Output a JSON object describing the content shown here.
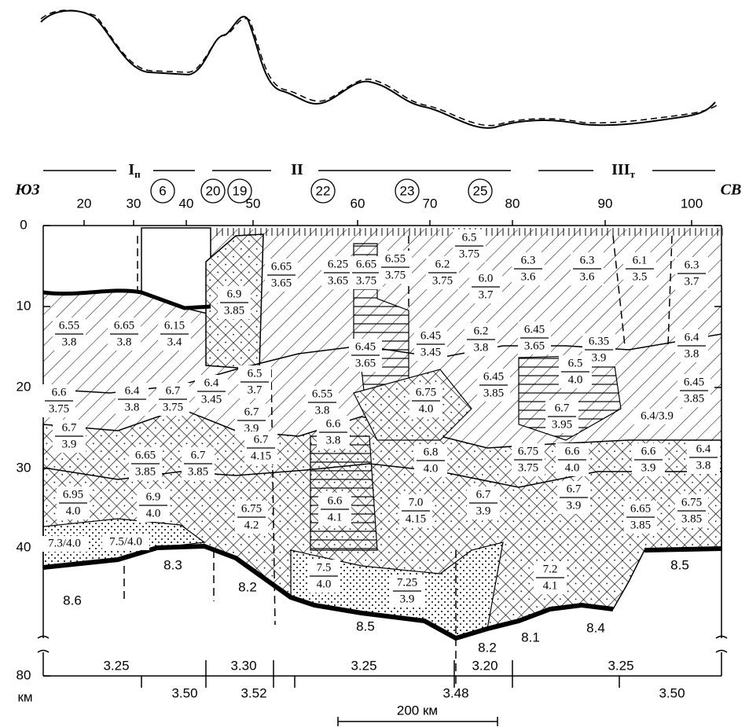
{
  "directions": {
    "left": "ЮЗ",
    "right": "СВ"
  },
  "zones": [
    {
      "label": "I",
      "subscript": "п"
    },
    {
      "label": "II"
    },
    {
      "label": "III",
      "subscript": "т"
    }
  ],
  "stations": [
    "6",
    "20",
    "19",
    "22",
    "23",
    "25"
  ],
  "distance_ticks": [
    20,
    30,
    40,
    50,
    60,
    70,
    80,
    90,
    100
  ],
  "depth_ticks": [
    0,
    10,
    20,
    30,
    40,
    80
  ],
  "depth_unit": "км",
  "cells": [
    {
      "top": "6.55",
      "bottom": "3.8"
    },
    {
      "top": "6.65",
      "bottom": "3.8"
    },
    {
      "top": "6.15",
      "bottom": "3.4"
    },
    {
      "top": "6.9",
      "bottom": "3.85"
    },
    {
      "top": "6.65",
      "bottom": "3.65"
    },
    {
      "top": "6.25",
      "bottom": "3.65"
    },
    {
      "top": "6.65",
      "bottom": "3.75"
    },
    {
      "top": "6.55",
      "bottom": "3.75"
    },
    {
      "top": "6.2",
      "bottom": "3.75"
    },
    {
      "top": "6.5",
      "bottom": "3.75"
    },
    {
      "top": "6.0",
      "bottom": "3.7"
    },
    {
      "top": "6.3",
      "bottom": "3.6"
    },
    {
      "top": "6.3",
      "bottom": "3.6"
    },
    {
      "top": "6.1",
      "bottom": "3.5"
    },
    {
      "top": "6.3",
      "bottom": "3.7"
    },
    {
      "top": "6.45",
      "bottom": "3.45"
    },
    {
      "top": "6.2",
      "bottom": "3.8"
    },
    {
      "top": "6.45",
      "bottom": "3.65"
    },
    {
      "top": "6.35",
      "bottom": "3.9"
    },
    {
      "top": "6.4",
      "bottom": "3.8"
    },
    {
      "top": "6.45",
      "bottom": "3.65"
    },
    {
      "top": "6.5",
      "bottom": "4.0"
    },
    {
      "top": "6.45",
      "bottom": "3.85"
    },
    {
      "top": "6.45",
      "bottom": "3.85"
    },
    {
      "top": "6.6",
      "bottom": "3.75"
    },
    {
      "top": "6.4",
      "bottom": "3.8"
    },
    {
      "top": "6.7",
      "bottom": "3.75"
    },
    {
      "top": "6.4",
      "bottom": "3.45"
    },
    {
      "top": "6.5",
      "bottom": "3.7"
    },
    {
      "top": "6.7",
      "bottom": "3.9"
    },
    {
      "top": "6.55",
      "bottom": "3.8"
    },
    {
      "top": "6.75",
      "bottom": "4.0"
    },
    {
      "top": "6.7",
      "bottom": "3.95"
    },
    {
      "text": "6.4/3.9"
    },
    {
      "top": "6.7",
      "bottom": "4.15"
    },
    {
      "top": "6.7",
      "bottom": "3.9"
    },
    {
      "top": "6.65",
      "bottom": "3.85"
    },
    {
      "top": "6.7",
      "bottom": "3.85"
    },
    {
      "top": "6.6",
      "bottom": "3.8"
    },
    {
      "top": "6.8",
      "bottom": "4.0"
    },
    {
      "top": "6.75",
      "bottom": "3.75"
    },
    {
      "top": "6.6",
      "bottom": "4.0"
    },
    {
      "top": "6.6",
      "bottom": "3.9"
    },
    {
      "top": "6.4",
      "bottom": "3.8"
    },
    {
      "top": "6.95",
      "bottom": "4.0"
    },
    {
      "top": "6.9",
      "bottom": "4.0"
    },
    {
      "top": "6.75",
      "bottom": "4.2"
    },
    {
      "top": "6.6",
      "bottom": "4.1"
    },
    {
      "top": "7.0",
      "bottom": "4.15"
    },
    {
      "top": "6.7",
      "bottom": "3.9"
    },
    {
      "top": "6.7",
      "bottom": "3.9"
    },
    {
      "top": "6.65",
      "bottom": "3.85"
    },
    {
      "top": "6.75",
      "bottom": "3.85"
    },
    {
      "text": "7.3/4.0"
    },
    {
      "text": "7.5/4.0"
    },
    {
      "top": "7.5",
      "bottom": "4.0"
    },
    {
      "top": "7.25",
      "bottom": "3.9"
    },
    {
      "top": "7.2",
      "bottom": "4.1"
    }
  ],
  "mantle": [
    "8.6",
    "8.3",
    "8.2",
    "8.5",
    "8.2",
    "8.1",
    "8.4",
    "8.5"
  ],
  "densities_upper": [
    "3.25",
    "3.30",
    "3.25",
    "3.20",
    "3.25"
  ],
  "densities_lower": [
    "3.50",
    "3.52",
    "3.48",
    "3.50"
  ],
  "scale_bar": "200 км"
}
